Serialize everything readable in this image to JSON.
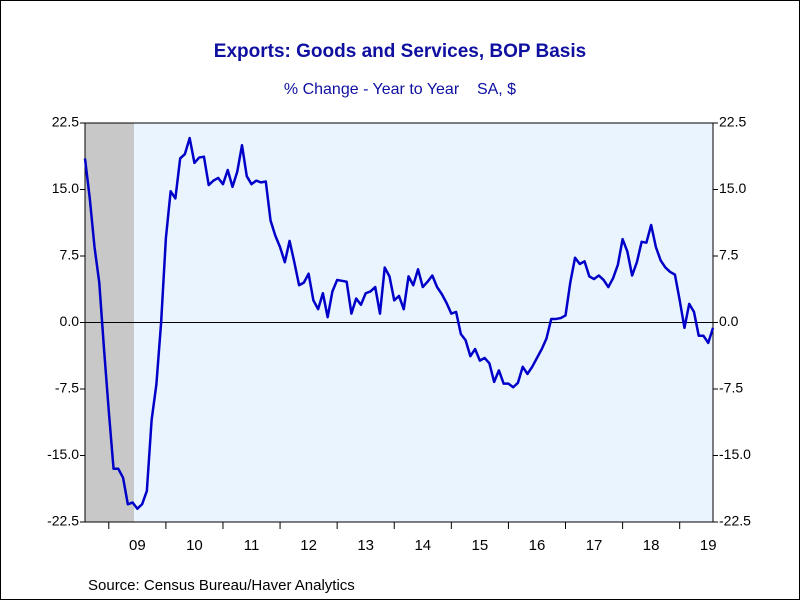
{
  "chart_data": {
    "type": "line",
    "title": "Exports: Goods and Services, BOP Basis",
    "subtitle": "% Change - Year to Year    SA, $",
    "source": "Source:  Census Bureau/Haver Analytics",
    "categories": [
      null,
      null,
      null,
      null,
      null,
      null,
      null,
      null,
      null,
      null,
      null,
      "09",
      null,
      null,
      null,
      null,
      null,
      null,
      null,
      null,
      null,
      null,
      null,
      "10",
      null,
      null,
      null,
      null,
      null,
      null,
      null,
      null,
      null,
      null,
      null,
      "11",
      null,
      null,
      null,
      null,
      null,
      null,
      null,
      null,
      null,
      null,
      null,
      "12",
      null,
      null,
      null,
      null,
      null,
      null,
      null,
      null,
      null,
      null,
      null,
      "13",
      null,
      null,
      null,
      null,
      null,
      null,
      null,
      null,
      null,
      null,
      null,
      "14",
      null,
      null,
      null,
      null,
      null,
      null,
      null,
      null,
      null,
      null,
      null,
      "15",
      null,
      null,
      null,
      null,
      null,
      null,
      null,
      null,
      null,
      null,
      null,
      "16",
      null,
      null,
      null,
      null,
      null,
      null,
      null,
      null,
      null,
      null,
      null,
      "17",
      null,
      null,
      null,
      null,
      null,
      null,
      null,
      null,
      null,
      null,
      null,
      "18",
      null,
      null,
      null,
      null,
      null,
      null,
      null,
      null,
      null,
      null,
      null,
      "19",
      null
    ],
    "series": [
      {
        "name": "Exports",
        "color": "#0000c8",
        "values": [
          18.5,
          14,
          8.5,
          4.5,
          -3,
          -10,
          -16.5,
          -16.5,
          -17.5,
          -20.5,
          -20.3,
          -21,
          -20.5,
          -19,
          -11,
          -7,
          0,
          9.5,
          14.8,
          14,
          18.5,
          19,
          20.8,
          18,
          18.6,
          18.7,
          15.5,
          16,
          16.3,
          15.6,
          17.2,
          15.3,
          17,
          20,
          16.5,
          15.6,
          16,
          15.8,
          15.9,
          11.5,
          9.8,
          8.5,
          6.8,
          9.2,
          6.8,
          4.2,
          4.5,
          5.5,
          2.5,
          1.5,
          3.3,
          0.6,
          3.5,
          4.8,
          4.7,
          4.6,
          1,
          2.7,
          2,
          3.3,
          3.5,
          4,
          1,
          6.2,
          5.2,
          2.5,
          3,
          1.5,
          5.2,
          4.2,
          6,
          4,
          4.6,
          5.3,
          4,
          3.2,
          2.2,
          1,
          1.2,
          -1.3,
          -2,
          -3.8,
          -3,
          -4.3,
          -4,
          -4.6,
          -6.7,
          -5.4,
          -6.9,
          -6.9,
          -7.3,
          -6.8,
          -5,
          -5.8,
          -5,
          -4,
          -3,
          -1.8,
          0.4,
          0.4,
          0.5,
          0.8,
          4.5,
          7.3,
          6.6,
          6.9,
          5.2,
          4.9,
          5.3,
          4.8,
          4,
          5,
          6.5,
          9.4,
          8,
          5.3,
          6.8,
          9.1,
          9,
          11,
          8.5,
          7,
          6.2,
          5.7,
          5.4,
          2.5,
          -0.6,
          2.1,
          1.2,
          -1.5,
          -1.5,
          -2.3,
          -0.6
        ]
      }
    ],
    "shaded": {
      "start": 0,
      "end": 10
    },
    "ylim": [
      -22.5,
      22.5
    ],
    "yticks": [
      -22.5,
      {
        "value": -15,
        "label": "-15.0"
      },
      -7.5,
      {
        "value": 0,
        "label": "0.0"
      },
      7.5,
      {
        "value": 15,
        "label": "15.0"
      },
      22.5
    ]
  }
}
